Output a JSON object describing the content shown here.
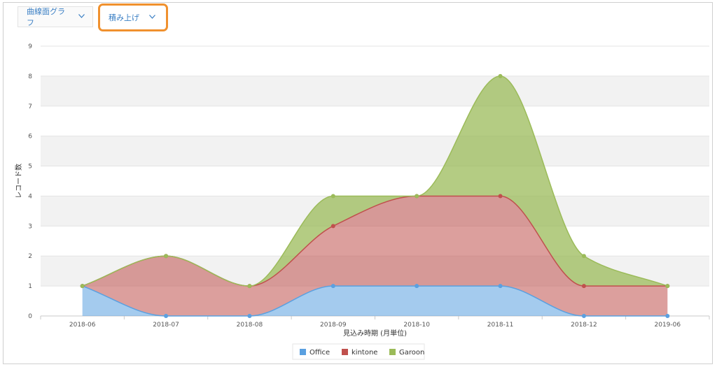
{
  "toolbar": {
    "chart_type": "曲線面グラフ",
    "stacking": "積み上げ"
  },
  "colors": {
    "office": "#5aa0e0",
    "kintone": "#c0504d",
    "garoon": "#9bbb59",
    "highlight": "#f0912e"
  },
  "chart_data": {
    "type": "area",
    "stacked": true,
    "smoothed": true,
    "categories": [
      "2018-06",
      "2018-07",
      "2018-08",
      "2018-09",
      "2018-10",
      "2018-11",
      "2018-12",
      "2019-06"
    ],
    "series": [
      {
        "name": "Office",
        "values": [
          1,
          0,
          0,
          1,
          1,
          1,
          0,
          0
        ]
      },
      {
        "name": "kintone",
        "values": [
          0,
          2,
          1,
          2,
          3,
          3,
          1,
          1
        ]
      },
      {
        "name": "Garoon",
        "values": [
          0,
          0,
          0,
          1,
          0,
          4,
          1,
          0
        ]
      }
    ],
    "xlabel": "見込み時期 (月単位)",
    "ylabel": "レコード数",
    "ylim": [
      0,
      9
    ],
    "yticks": [
      0,
      1,
      2,
      3,
      4,
      5,
      6,
      7,
      8,
      9
    ],
    "grid": true,
    "legend_position": "bottom"
  }
}
